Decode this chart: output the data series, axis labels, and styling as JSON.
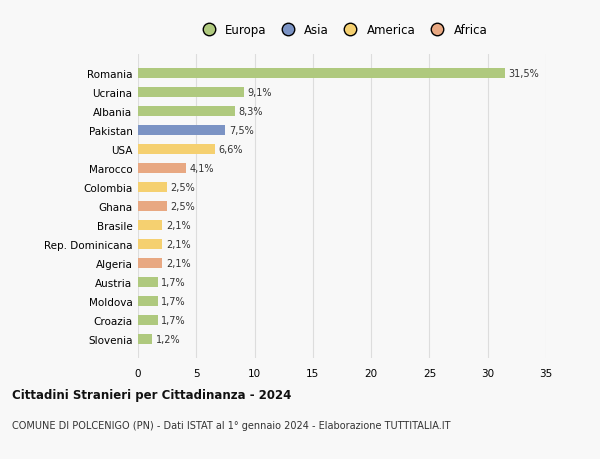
{
  "countries": [
    "Romania",
    "Ucraina",
    "Albania",
    "Pakistan",
    "USA",
    "Marocco",
    "Colombia",
    "Ghana",
    "Brasile",
    "Rep. Dominicana",
    "Algeria",
    "Austria",
    "Moldova",
    "Croazia",
    "Slovenia"
  ],
  "values": [
    31.5,
    9.1,
    8.3,
    7.5,
    6.6,
    4.1,
    2.5,
    2.5,
    2.1,
    2.1,
    2.1,
    1.7,
    1.7,
    1.7,
    1.2
  ],
  "labels": [
    "31,5%",
    "9,1%",
    "8,3%",
    "7,5%",
    "6,6%",
    "4,1%",
    "2,5%",
    "2,5%",
    "2,1%",
    "2,1%",
    "2,1%",
    "1,7%",
    "1,7%",
    "1,7%",
    "1,2%"
  ],
  "colors": [
    "#afc97e",
    "#afc97e",
    "#afc97e",
    "#7b93c4",
    "#f5d070",
    "#e8a882",
    "#f5d070",
    "#e8a882",
    "#f5d070",
    "#f5d070",
    "#e8a882",
    "#afc97e",
    "#afc97e",
    "#afc97e",
    "#afc97e"
  ],
  "legend_labels": [
    "Europa",
    "Asia",
    "America",
    "Africa"
  ],
  "legend_colors": [
    "#afc97e",
    "#7b93c4",
    "#f5d070",
    "#e8a882"
  ],
  "title": "Cittadini Stranieri per Cittadinanza - 2024",
  "subtitle": "COMUNE DI POLCENIGO (PN) - Dati ISTAT al 1° gennaio 2024 - Elaborazione TUTTITALIA.IT",
  "xlim": [
    0,
    35
  ],
  "xticks": [
    0,
    5,
    10,
    15,
    20,
    25,
    30,
    35
  ],
  "background_color": "#f8f8f8",
  "grid_color": "#dddddd",
  "bar_height": 0.55
}
